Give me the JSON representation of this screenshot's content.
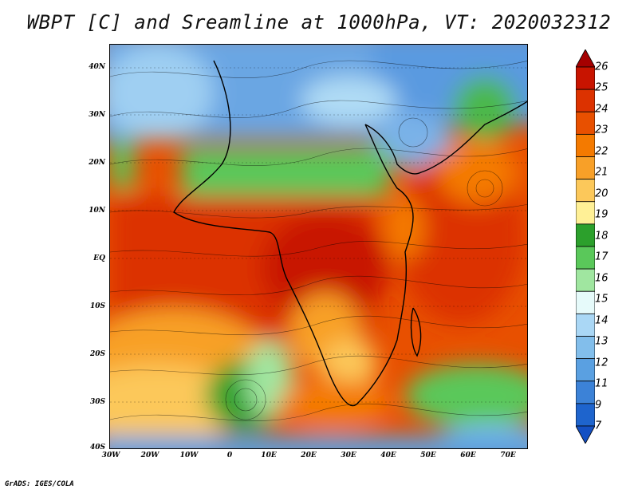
{
  "title": "WBPT [C] and Sreamline at 1000hPa, VT: 2020032312",
  "footer": "GrADS: IGES/COLA",
  "map": {
    "lat_labels": [
      "40N",
      "30N",
      "20N",
      "10N",
      "EQ",
      "10S",
      "20S",
      "30S",
      "40S"
    ],
    "lon_labels": [
      "30W",
      "20W",
      "10W",
      "0",
      "10E",
      "20E",
      "30E",
      "40E",
      "50E",
      "60E",
      "70E"
    ]
  },
  "colorbar": {
    "labels": [
      "26",
      "25",
      "24",
      "23",
      "22",
      "21",
      "20",
      "19",
      "18",
      "17",
      "16",
      "15",
      "14",
      "13",
      "12",
      "11",
      "9",
      "7"
    ],
    "colors": [
      "#a50000",
      "#c81400",
      "#dc3200",
      "#e85000",
      "#f47a00",
      "#f8a028",
      "#fcc85a",
      "#fff096",
      "#2ca02c",
      "#5ac85a",
      "#a0e6a0",
      "#e6fafa",
      "#aad7f5",
      "#82beeb",
      "#5aa0e1",
      "#3c82d7",
      "#1e64cd",
      "#1450c3"
    ]
  }
}
